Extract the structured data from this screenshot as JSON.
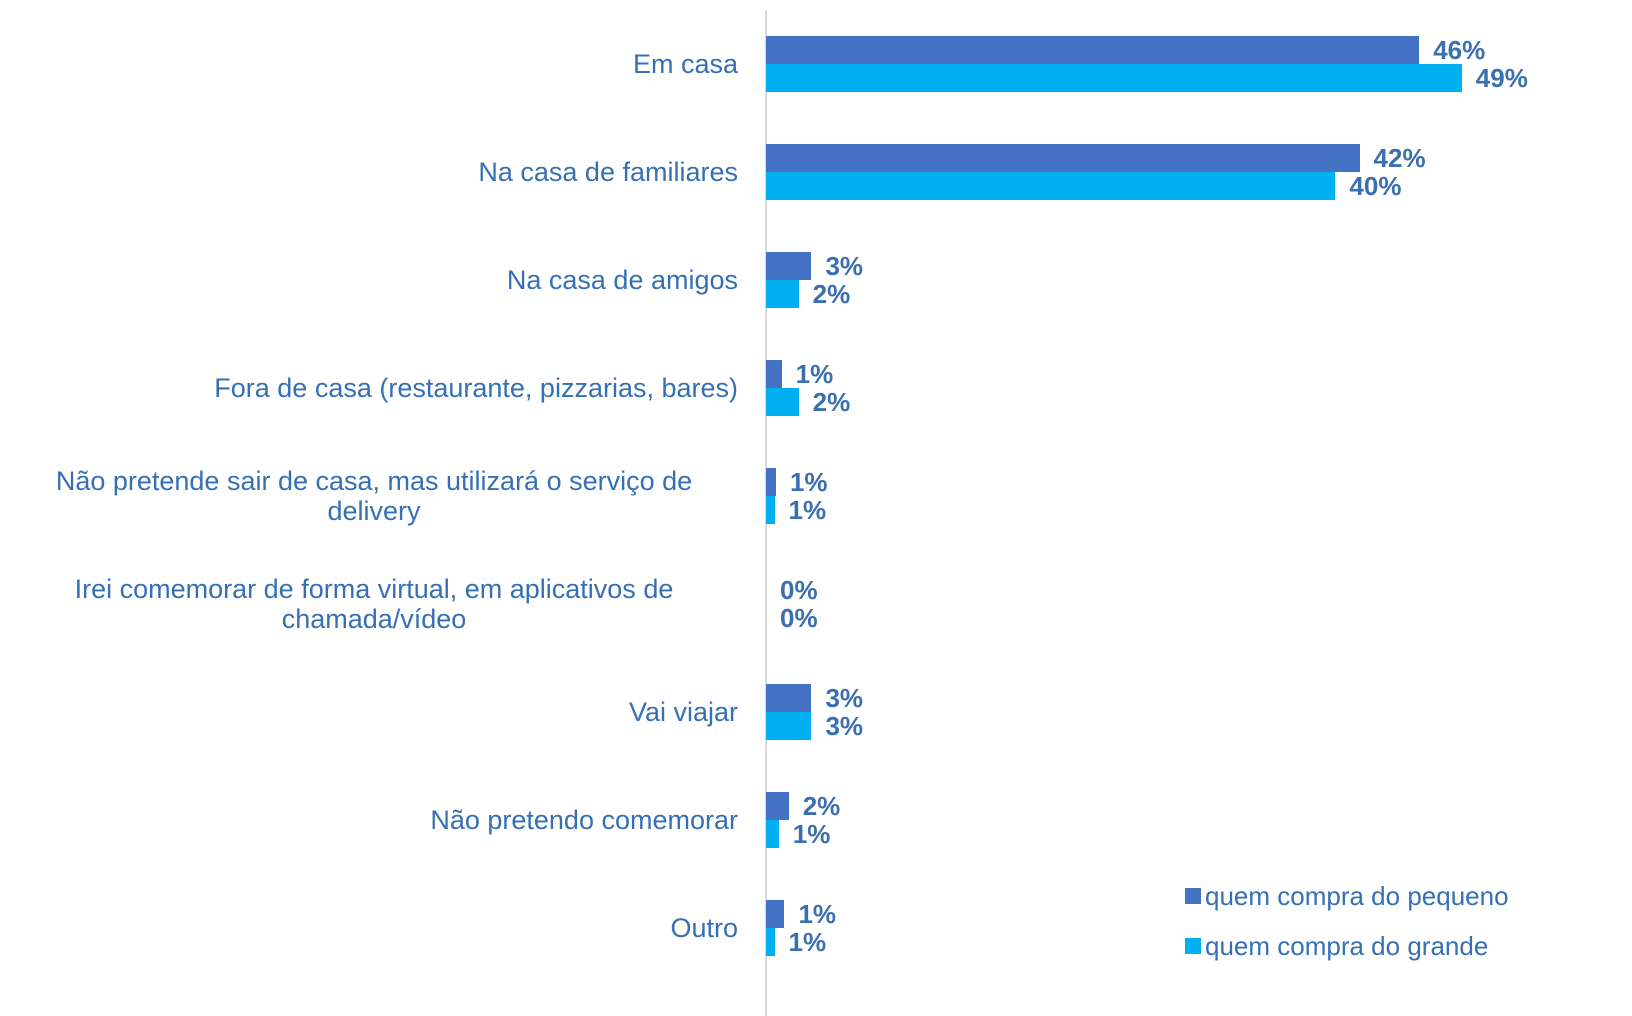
{
  "chart_data": {
    "type": "bar",
    "orientation": "horizontal",
    "categories": [
      "Em casa",
      "Na casa de familiares",
      "Na casa de amigos",
      "Fora de casa (restaurante, pizzarias, bares)",
      "Não pretende sair de casa, mas utilizará o serviço de delivery",
      "Irei comemorar de forma virtual, em aplicativos de chamada/vídeo",
      "Vai viajar",
      "Não pretendo comemorar",
      "Outro"
    ],
    "series": [
      {
        "name": "quem compra do pequeno",
        "color": "#4472c4",
        "values": [
          46,
          41.8,
          3.2,
          1.1,
          0.7,
          0,
          3.2,
          1.6,
          1.3
        ],
        "value_labels": [
          "46%",
          "42%",
          "3%",
          "1%",
          "1%",
          "0%",
          "3%",
          "2%",
          "1%"
        ]
      },
      {
        "name": "quem compra do grande",
        "color": "#00b0f0",
        "values": [
          49,
          40.1,
          2.3,
          2.3,
          0.6,
          0,
          3.2,
          0.9,
          0.6
        ],
        "value_labels": [
          "49%",
          "40%",
          "2%",
          "2%",
          "1%",
          "0%",
          "3%",
          "1%",
          "1%"
        ]
      }
    ],
    "legend": "bottom-right"
  }
}
